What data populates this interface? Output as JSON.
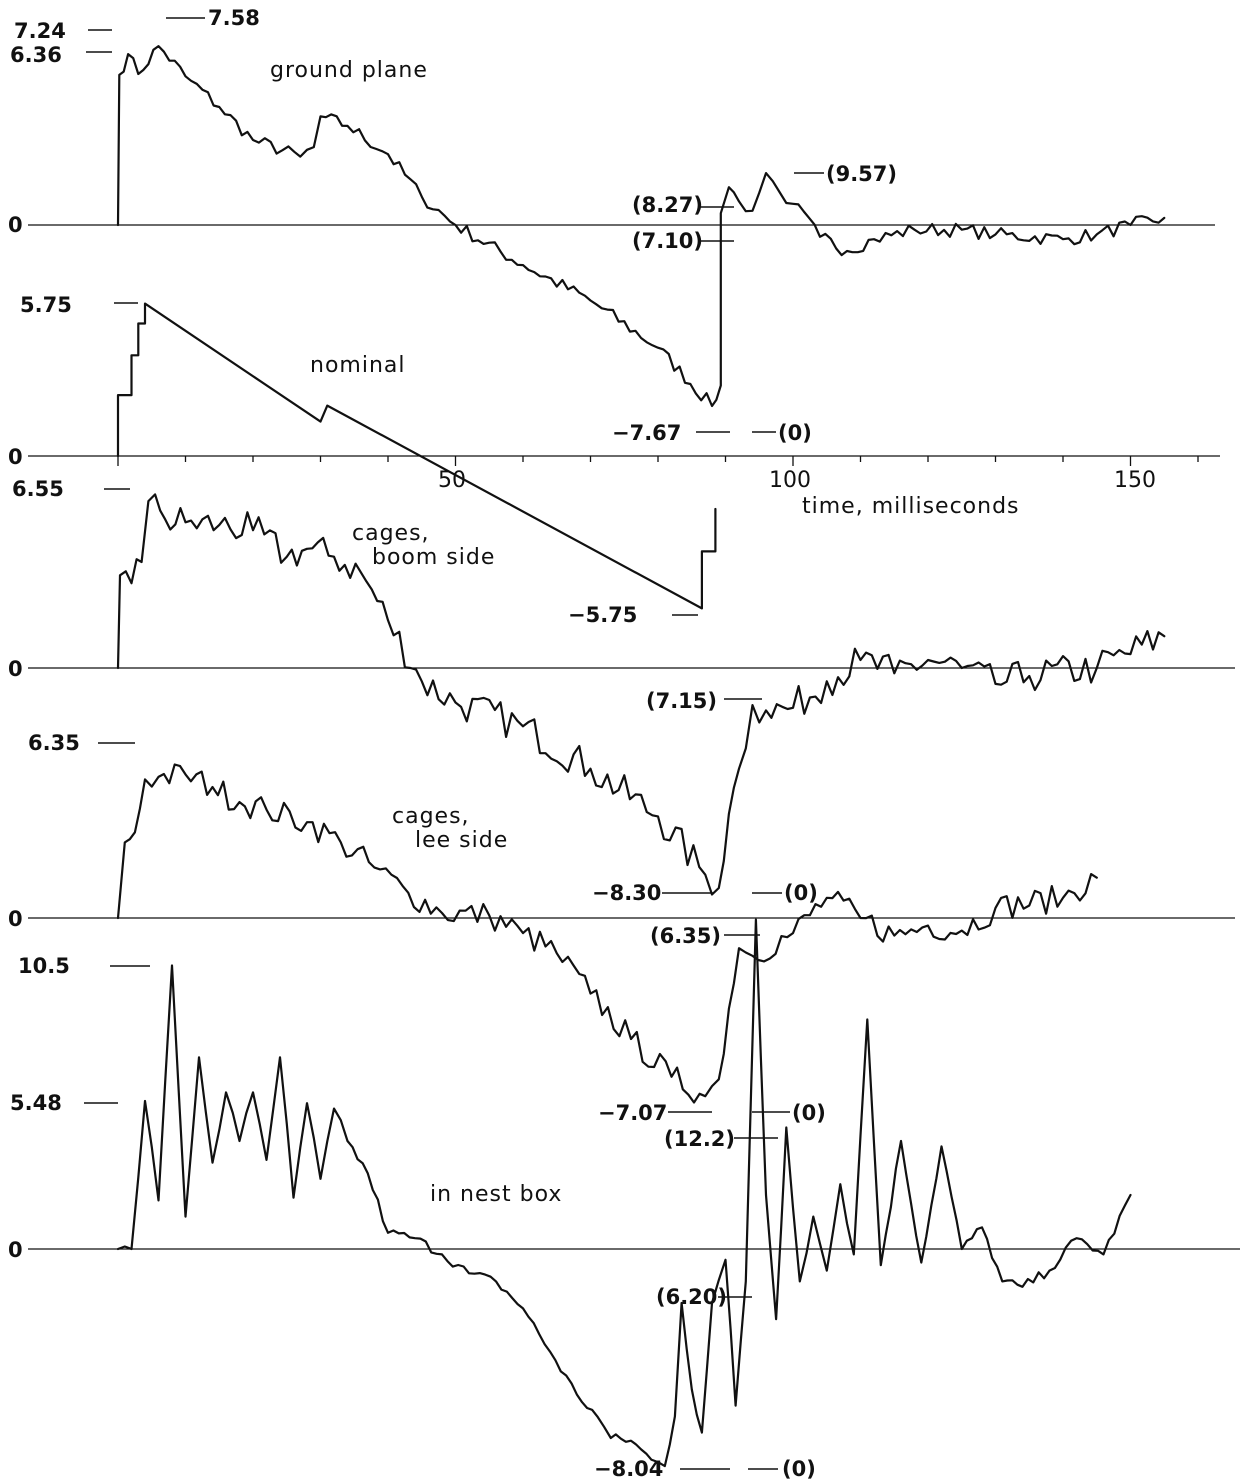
{
  "chart_data": {
    "type": "line",
    "xlabel": "time, milliseconds",
    "x_tick_labels": [
      "50",
      "100",
      "150"
    ],
    "x_ticks": [
      50,
      100,
      150
    ],
    "panels": [
      {
        "name": "ground plane",
        "zero_label": "0",
        "value_labels": [
          "7.24",
          "6.36",
          "7.58",
          "(8.27)",
          "(7.10)",
          "(9.57)",
          "-7.67",
          "(0)"
        ],
        "points": [
          [
            0,
            0
          ],
          [
            0.2,
            6.36
          ],
          [
            1.5,
            7.24
          ],
          [
            3,
            6.4
          ],
          [
            6,
            7.58
          ],
          [
            10,
            6.3
          ],
          [
            15,
            5.0
          ],
          [
            20,
            3.6
          ],
          [
            27,
            2.9
          ],
          [
            29,
            3.3
          ],
          [
            30,
            4.6
          ],
          [
            34,
            4.2
          ],
          [
            40,
            3.0
          ],
          [
            45,
            1.2
          ],
          [
            50,
            0
          ],
          [
            60,
            -1.7
          ],
          [
            70,
            -3.2
          ],
          [
            80,
            -5.2
          ],
          [
            88,
            -7.67
          ],
          [
            89.3,
            -6.8
          ],
          [
            89.3,
            0.5
          ],
          [
            90.5,
            1.6
          ],
          [
            92,
            1.0
          ],
          [
            94,
            0.6
          ],
          [
            96,
            2.2
          ],
          [
            98,
            1.4
          ],
          [
            100,
            0.9
          ],
          [
            104,
            -0.5
          ],
          [
            108,
            -1.1
          ],
          [
            112,
            -0.6
          ],
          [
            118,
            -0.2
          ],
          [
            125,
            -0.2
          ],
          [
            130,
            -0.4
          ],
          [
            140,
            -0.6
          ],
          [
            145,
            -0.4
          ],
          [
            150,
            0
          ],
          [
            155,
            0.3
          ]
        ]
      },
      {
        "name": "nominal",
        "zero_label": "0",
        "value_labels": [
          "5.75",
          "-5.75"
        ],
        "points": [
          [
            0,
            0
          ],
          [
            0,
            2.3
          ],
          [
            2,
            2.3
          ],
          [
            2,
            3.8
          ],
          [
            3,
            3.8
          ],
          [
            3,
            5.0
          ],
          [
            4,
            5.0
          ],
          [
            4,
            5.75
          ],
          [
            30,
            1.3
          ],
          [
            31,
            1.9
          ],
          [
            86.5,
            -5.75
          ],
          [
            86.5,
            -3.6
          ],
          [
            88.5,
            -3.6
          ],
          [
            88.5,
            -2.0
          ]
        ]
      },
      {
        "name": "cages, boom side",
        "zero_label": "0",
        "value_labels": [
          "6.55",
          "(7.15)",
          "-8.30",
          "(0)"
        ],
        "points": [
          [
            0,
            0
          ],
          [
            0.3,
            3.5
          ],
          [
            2,
            3.2
          ],
          [
            3.5,
            4.0
          ],
          [
            4.5,
            6.3
          ],
          [
            5.5,
            6.55
          ],
          [
            7,
            5.6
          ],
          [
            10,
            5.5
          ],
          [
            15,
            5.4
          ],
          [
            20,
            5.2
          ],
          [
            25,
            4.2
          ],
          [
            28,
            4.5
          ],
          [
            32,
            4.2
          ],
          [
            36,
            3.6
          ],
          [
            40,
            1.8
          ],
          [
            45,
            -0.5
          ],
          [
            50,
            -1.3
          ],
          [
            60,
            -2.2
          ],
          [
            70,
            -3.8
          ],
          [
            80,
            -5.6
          ],
          [
            87,
            -7.8
          ],
          [
            89,
            -8.3
          ],
          [
            90.5,
            -5.5
          ],
          [
            92,
            -3.8
          ],
          [
            94,
            -1.4
          ],
          [
            96,
            -1.6
          ],
          [
            100,
            -1.5
          ],
          [
            105,
            -0.5
          ],
          [
            110,
            0.3
          ],
          [
            115,
            -0.2
          ],
          [
            120,
            0.3
          ],
          [
            125,
            0
          ],
          [
            130,
            -0.6
          ],
          [
            135,
            -0.3
          ],
          [
            145,
            0
          ],
          [
            155,
            1.2
          ]
        ]
      },
      {
        "name": "cages, lee side",
        "zero_label": "0",
        "value_labels": [
          "6.35",
          "(6.35)",
          "-7.07",
          "(0)"
        ],
        "points": [
          [
            0,
            0
          ],
          [
            1,
            3.0
          ],
          [
            2.5,
            3.4
          ],
          [
            4,
            5.5
          ],
          [
            6,
            5.6
          ],
          [
            10,
            5.7
          ],
          [
            14,
            5.2
          ],
          [
            18,
            4.6
          ],
          [
            22,
            4.3
          ],
          [
            28,
            3.8
          ],
          [
            33,
            3.0
          ],
          [
            38,
            2.0
          ],
          [
            43,
            1.0
          ],
          [
            48,
            0.2
          ],
          [
            55,
            0.1
          ],
          [
            60,
            -0.6
          ],
          [
            65,
            -1.4
          ],
          [
            70,
            -3.0
          ],
          [
            76,
            -4.8
          ],
          [
            82,
            -6.3
          ],
          [
            87,
            -7.07
          ],
          [
            89,
            -6.4
          ],
          [
            90.5,
            -3.6
          ],
          [
            92,
            -1.2
          ],
          [
            94,
            -1.5
          ],
          [
            100,
            -0.6
          ],
          [
            105,
            0.8
          ],
          [
            110,
            0
          ],
          [
            115,
            -0.7
          ],
          [
            120,
            -0.3
          ],
          [
            125,
            -0.5
          ],
          [
            130,
            0.4
          ],
          [
            140,
            0.8
          ],
          [
            145,
            1.6
          ]
        ]
      },
      {
        "name": "in nest box",
        "zero_label": "0",
        "value_labels": [
          "10.5",
          "5.48",
          "(12.2)",
          "(6.20)",
          "-8.04",
          "(0)"
        ],
        "points": [
          [
            0,
            0
          ],
          [
            2,
            0
          ],
          [
            4,
            5.48
          ],
          [
            6,
            1.8
          ],
          [
            8,
            10.5
          ],
          [
            10,
            1.2
          ],
          [
            12,
            7.1
          ],
          [
            14,
            3.2
          ],
          [
            16,
            5.8
          ],
          [
            18,
            4.0
          ],
          [
            20,
            5.8
          ],
          [
            22,
            3.3
          ],
          [
            24,
            7.1
          ],
          [
            26,
            1.9
          ],
          [
            28,
            5.4
          ],
          [
            30,
            2.6
          ],
          [
            32,
            5.2
          ],
          [
            34,
            4.0
          ],
          [
            37,
            2.8
          ],
          [
            40,
            0.6
          ],
          [
            44,
            0.4
          ],
          [
            48,
            -0.2
          ],
          [
            52,
            -0.9
          ],
          [
            56,
            -1.2
          ],
          [
            60,
            -2.2
          ],
          [
            64,
            -3.8
          ],
          [
            68,
            -5.4
          ],
          [
            71,
            -6.2
          ],
          [
            73,
            -7.0
          ],
          [
            76,
            -7.1
          ],
          [
            79,
            -7.8
          ],
          [
            81,
            -8.04
          ],
          [
            82.5,
            -6.2
          ],
          [
            83.5,
            -2.0
          ],
          [
            85,
            -5.2
          ],
          [
            86.5,
            -6.8
          ],
          [
            88,
            -2.0
          ],
          [
            90,
            -0.4
          ],
          [
            91.5,
            -5.8
          ],
          [
            93,
            -1.2
          ],
          [
            94.5,
            12.2
          ],
          [
            96,
            2.0
          ],
          [
            97.5,
            -2.6
          ],
          [
            99,
            4.5
          ],
          [
            101,
            -1.2
          ],
          [
            103,
            1.2
          ],
          [
            105,
            -0.8
          ],
          [
            107,
            2.4
          ],
          [
            109,
            -0.2
          ],
          [
            111,
            8.5
          ],
          [
            113,
            -0.6
          ],
          [
            116,
            4.0
          ],
          [
            119,
            -0.5
          ],
          [
            122,
            3.8
          ],
          [
            125,
            0
          ],
          [
            128,
            0.8
          ],
          [
            131,
            -1.2
          ],
          [
            134,
            -1.4
          ],
          [
            138,
            -0.8
          ],
          [
            142,
            0.4
          ],
          [
            146,
            -0.2
          ],
          [
            150,
            2.0
          ]
        ]
      }
    ]
  }
}
